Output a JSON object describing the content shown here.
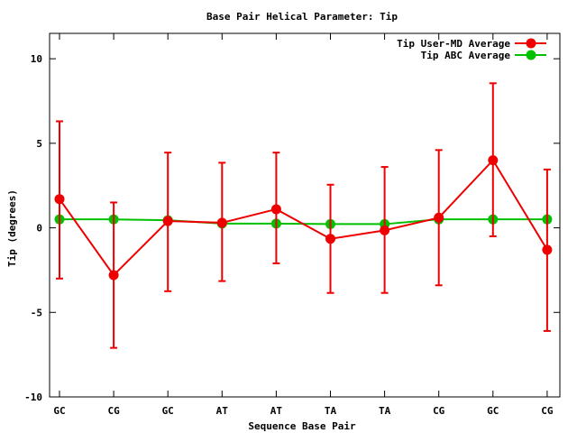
{
  "chart_data": {
    "type": "line",
    "title": "Base Pair Helical Parameter: Tip",
    "xlabel": "Sequence Base Pair",
    "ylabel": "Tip (degrees)",
    "categories": [
      "GC",
      "CG",
      "GC",
      "AT",
      "AT",
      "TA",
      "TA",
      "CG",
      "GC",
      "CG"
    ],
    "ylim": [
      -10,
      11.5
    ],
    "yticks": [
      -10,
      -5,
      0,
      5,
      10
    ],
    "ytick_labels": [
      "-10",
      "-5",
      "0",
      "5",
      "10"
    ],
    "grid": false,
    "legend_position": "top-right",
    "series": [
      {
        "name": "Tip User-MD Average",
        "color": "#ee0000",
        "values": [
          1.7,
          -2.8,
          0.4,
          0.3,
          1.1,
          -0.65,
          -0.15,
          0.6,
          4.0,
          -1.3
        ],
        "error_low": [
          -3.0,
          -7.1,
          -3.75,
          -3.15,
          -2.1,
          -3.85,
          -3.85,
          -3.4,
          -0.5,
          -6.1
        ],
        "error_high": [
          6.3,
          1.5,
          4.45,
          3.85,
          4.45,
          2.55,
          3.6,
          4.6,
          8.55,
          3.45
        ]
      },
      {
        "name": "Tip ABC Average",
        "color": "#00c000",
        "values": [
          0.5,
          0.5,
          0.45,
          0.25,
          0.25,
          0.22,
          0.22,
          0.5,
          0.5,
          0.5
        ]
      }
    ]
  }
}
